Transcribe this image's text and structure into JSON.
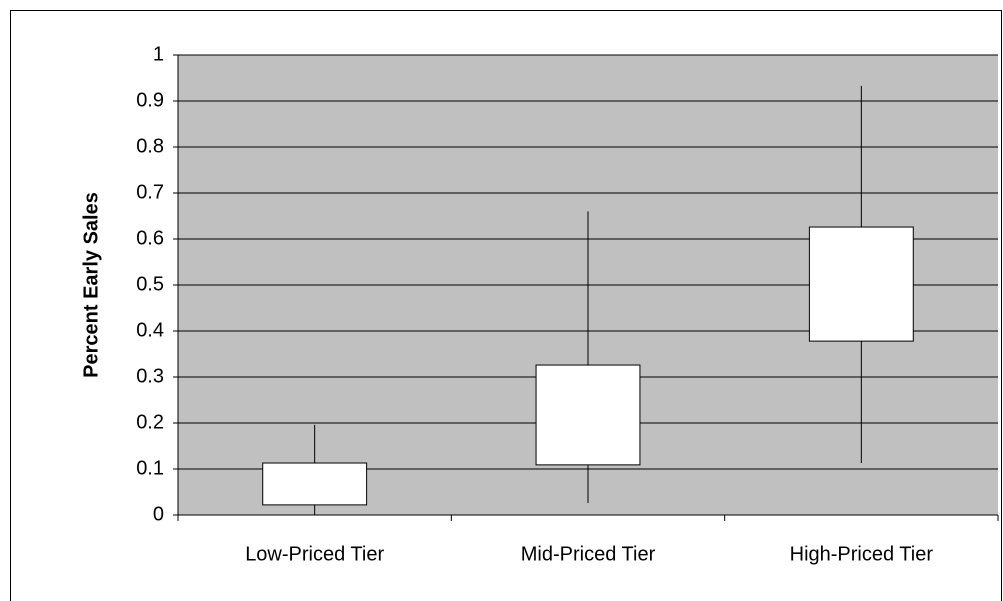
{
  "chart_data": {
    "type": "box",
    "y_label": "Percent Early Sales",
    "categories": [
      "Low-Priced Tier",
      "Mid-Priced Tier",
      "High-Priced Tier"
    ],
    "whisker_low": [
      0.0,
      0.026,
      0.113
    ],
    "box_low": [
      0.022,
      0.109,
      0.378
    ],
    "box_high": [
      0.113,
      0.326,
      0.626
    ],
    "whisker_high": [
      0.196,
      0.66,
      0.933
    ],
    "color": "#ffffff",
    "plot_background": "#c0c0c0",
    "ylim": [
      0,
      1
    ],
    "yticks": [
      0,
      0.1,
      0.2,
      0.3,
      0.4,
      0.5,
      0.6,
      0.7,
      0.8,
      0.9,
      1
    ],
    "grid": true
  }
}
